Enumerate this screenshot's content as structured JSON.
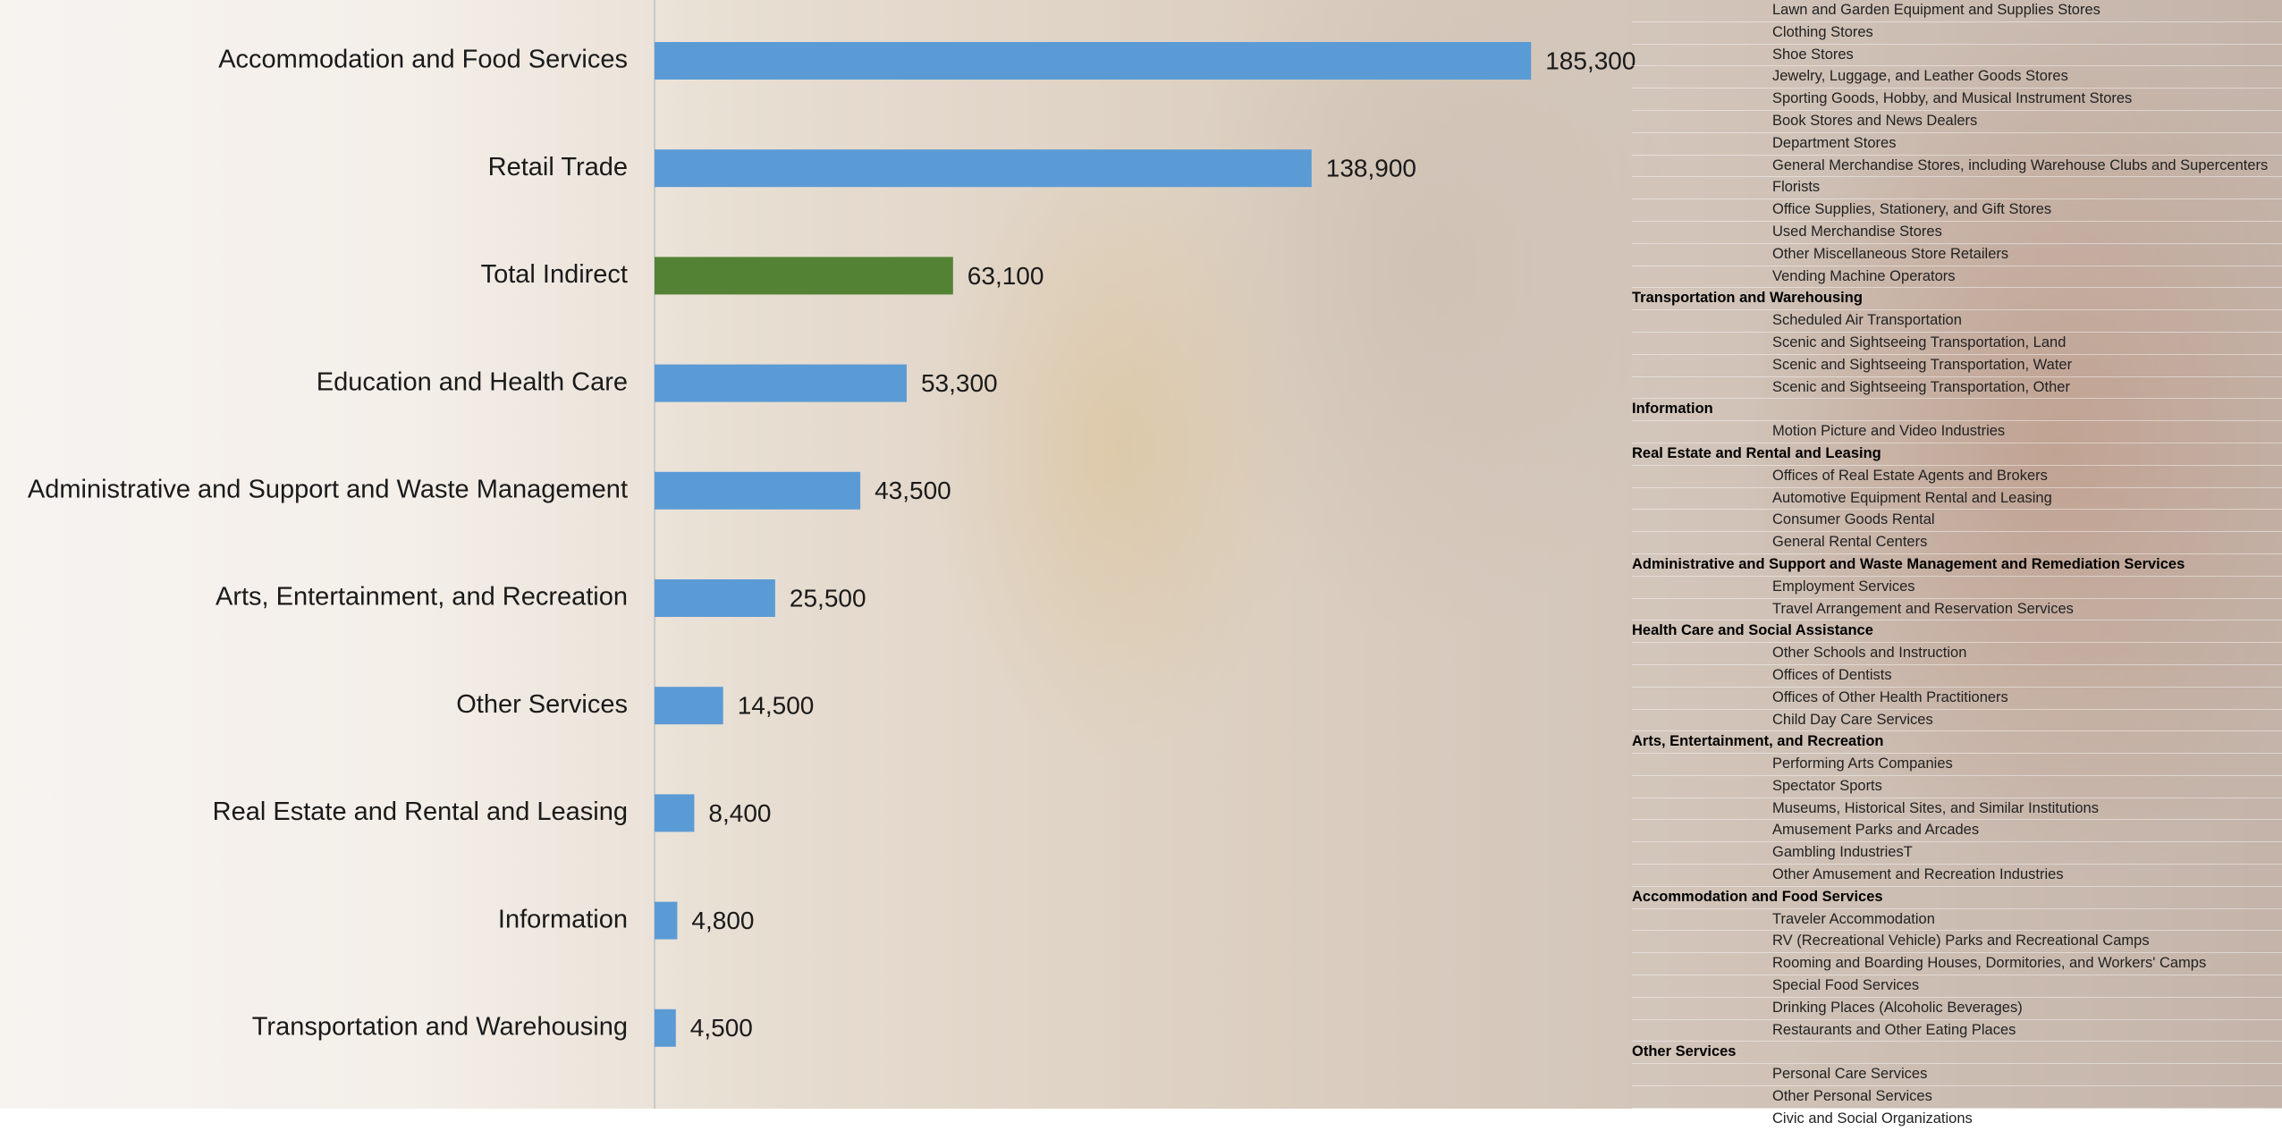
{
  "chart_data": {
    "type": "bar",
    "orientation": "horizontal",
    "categories": [
      "Accommodation and Food Services",
      "Retail Trade",
      "Total Indirect",
      "Education and Health Care",
      "Administrative and Support and Waste Management",
      "Arts, Entertainment, and Recreation",
      "Other Services",
      "Real Estate and Rental and Leasing",
      "Information",
      "Transportation and Warehousing"
    ],
    "values": [
      185300,
      138900,
      63100,
      53300,
      43500,
      25500,
      14500,
      8400,
      4800,
      4500
    ],
    "value_labels": [
      "185,300",
      "138,900",
      "63,100",
      "53,300",
      "43,500",
      "25,500",
      "14,500",
      "8,400",
      "4,800",
      "4,500"
    ],
    "colors": [
      "#5b9bd5",
      "#5b9bd5",
      "#548235",
      "#5b9bd5",
      "#5b9bd5",
      "#5b9bd5",
      "#5b9bd5",
      "#5b9bd5",
      "#5b9bd5",
      "#5b9bd5"
    ],
    "xlim": [
      0,
      200000
    ]
  },
  "industry_list": [
    {
      "items": [
        "Lawn and Garden Equipment and Supplies Stores",
        "Clothing Stores",
        "Shoe Stores",
        "Jewelry, Luggage, and Leather Goods Stores",
        "Sporting Goods, Hobby, and Musical Instrument Stores",
        "Book Stores and News Dealers",
        "Department Stores",
        "General Merchandise Stores, including Warehouse Clubs and Supercenters",
        "Florists",
        "Office Supplies, Stationery, and Gift Stores",
        "Used Merchandise Stores",
        "Other Miscellaneous Store Retailers",
        "Vending Machine Operators"
      ]
    },
    {
      "heading": "Transportation and Warehousing",
      "items": [
        "Scheduled Air Transportation",
        "Scenic and Sightseeing Transportation, Land",
        "Scenic and Sightseeing Transportation, Water",
        "Scenic and Sightseeing Transportation, Other"
      ]
    },
    {
      "heading": "Information",
      "items": [
        "Motion Picture and Video Industries"
      ]
    },
    {
      "heading": "Real Estate and Rental and Leasing",
      "items": [
        "Offices of Real Estate Agents and Brokers",
        "Automotive Equipment Rental and Leasing",
        "Consumer Goods Rental",
        "General Rental Centers"
      ]
    },
    {
      "heading": "Administrative and Support and Waste Management and Remediation Services",
      "items": [
        "Employment Services",
        "Travel Arrangement and Reservation Services"
      ]
    },
    {
      "heading": "Health Care and Social Assistance",
      "items": [
        "Other Schools and Instruction",
        "Offices of Dentists",
        "Offices of Other Health Practitioners",
        "Child Day Care Services"
      ]
    },
    {
      "heading": "Arts, Entertainment, and Recreation",
      "items": [
        "Performing Arts Companies",
        "Spectator Sports",
        "Museums, Historical Sites, and Similar Institutions",
        "Amusement Parks and Arcades",
        "Gambling IndustriesT",
        "Other Amusement and Recreation Industries"
      ]
    },
    {
      "heading": "Accommodation and Food Services",
      "items": [
        "Traveler Accommodation",
        "RV (Recreational Vehicle) Parks and Recreational Camps",
        "Rooming and Boarding Houses, Dormitories, and Workers' Camps",
        "Special Food Services",
        "Drinking Places (Alcoholic Beverages)",
        "Restaurants and Other Eating Places"
      ]
    },
    {
      "heading": "Other Services",
      "items": [
        "Personal Care Services",
        "Other Personal Services",
        "Civic and Social Organizations"
      ]
    }
  ]
}
